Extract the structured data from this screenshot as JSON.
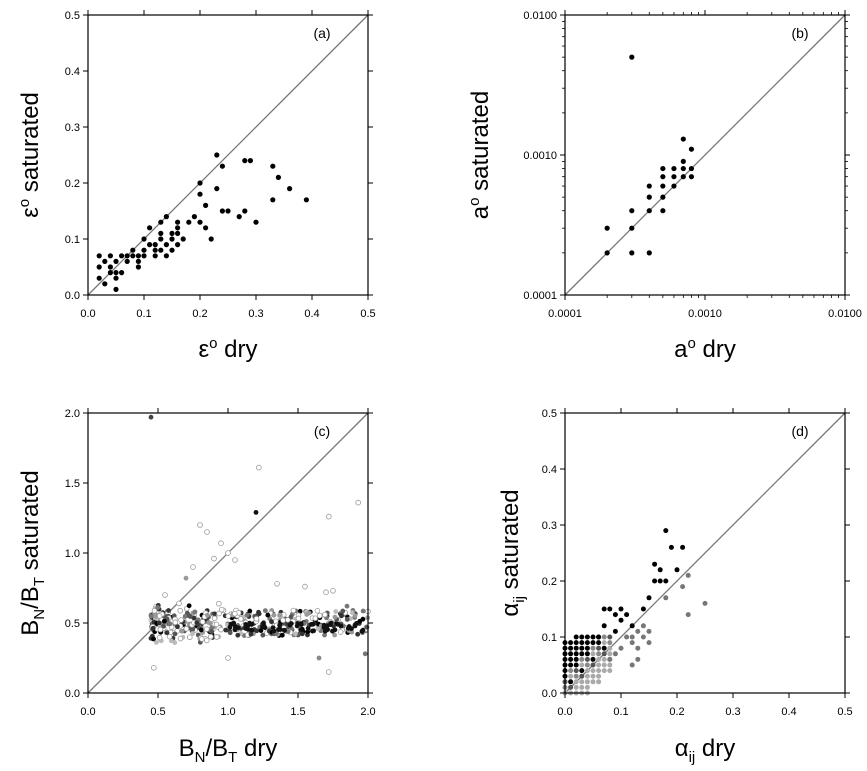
{
  "chart_data": [
    {
      "panel": "(a)",
      "type": "scatter",
      "xlabel": {
        "base": "ε",
        "sup": "o",
        "rest": " dry"
      },
      "ylabel": {
        "base": "ε",
        "sup": "o",
        "rest": " saturated"
      },
      "xlim": [
        0,
        0.5
      ],
      "ylim": [
        0,
        0.5
      ],
      "xticks": [
        "0.0",
        "0.1",
        "0.2",
        "0.3",
        "0.4",
        "0.5"
      ],
      "yticks": [
        "0.0",
        "0.1",
        "0.2",
        "0.3",
        "0.4",
        "0.5"
      ],
      "scale": "linear",
      "reference_line": "y = x",
      "points": [
        [
          0.02,
          0.07
        ],
        [
          0.02,
          0.05
        ],
        [
          0.02,
          0.03
        ],
        [
          0.03,
          0.06
        ],
        [
          0.03,
          0.02
        ],
        [
          0.04,
          0.07
        ],
        [
          0.04,
          0.05
        ],
        [
          0.04,
          0.04
        ],
        [
          0.05,
          0.06
        ],
        [
          0.05,
          0.04
        ],
        [
          0.05,
          0.03
        ],
        [
          0.05,
          0.01
        ],
        [
          0.06,
          0.07
        ],
        [
          0.06,
          0.04
        ],
        [
          0.07,
          0.07
        ],
        [
          0.07,
          0.06
        ],
        [
          0.08,
          0.07
        ],
        [
          0.08,
          0.08
        ],
        [
          0.09,
          0.06
        ],
        [
          0.09,
          0.07
        ],
        [
          0.09,
          0.05
        ],
        [
          0.1,
          0.08
        ],
        [
          0.1,
          0.1
        ],
        [
          0.1,
          0.07
        ],
        [
          0.11,
          0.09
        ],
        [
          0.11,
          0.12
        ],
        [
          0.12,
          0.09
        ],
        [
          0.12,
          0.08
        ],
        [
          0.12,
          0.07
        ],
        [
          0.13,
          0.1
        ],
        [
          0.13,
          0.13
        ],
        [
          0.13,
          0.11
        ],
        [
          0.13,
          0.08
        ],
        [
          0.14,
          0.14
        ],
        [
          0.14,
          0.09
        ],
        [
          0.14,
          0.07
        ],
        [
          0.15,
          0.11
        ],
        [
          0.15,
          0.1
        ],
        [
          0.15,
          0.08
        ],
        [
          0.16,
          0.13
        ],
        [
          0.16,
          0.12
        ],
        [
          0.16,
          0.11
        ],
        [
          0.16,
          0.09
        ],
        [
          0.17,
          0.1
        ],
        [
          0.18,
          0.13
        ],
        [
          0.19,
          0.14
        ],
        [
          0.2,
          0.18
        ],
        [
          0.2,
          0.2
        ],
        [
          0.2,
          0.13
        ],
        [
          0.21,
          0.12
        ],
        [
          0.21,
          0.16
        ],
        [
          0.22,
          0.1
        ],
        [
          0.23,
          0.19
        ],
        [
          0.23,
          0.25
        ],
        [
          0.24,
          0.23
        ],
        [
          0.24,
          0.15
        ],
        [
          0.25,
          0.15
        ],
        [
          0.27,
          0.14
        ],
        [
          0.28,
          0.24
        ],
        [
          0.28,
          0.15
        ],
        [
          0.29,
          0.24
        ],
        [
          0.3,
          0.13
        ],
        [
          0.33,
          0.23
        ],
        [
          0.33,
          0.17
        ],
        [
          0.34,
          0.21
        ],
        [
          0.36,
          0.19
        ],
        [
          0.39,
          0.17
        ]
      ]
    },
    {
      "panel": "(b)",
      "type": "scatter",
      "xlabel": {
        "base": "a",
        "sup": "o",
        "rest": " dry"
      },
      "ylabel": {
        "base": "a",
        "sup": "o",
        "rest": " saturated"
      },
      "xlim": [
        0.0001,
        0.01
      ],
      "ylim": [
        0.0001,
        0.01
      ],
      "xticks": [
        "0.0001",
        "0.0010",
        "0.0100"
      ],
      "yticks": [
        "0.0001",
        "0.0010",
        "0.0100"
      ],
      "scale": "log",
      "reference_line": "y = x",
      "points": [
        [
          0.0002,
          0.0003
        ],
        [
          0.0002,
          0.0002
        ],
        [
          0.0003,
          0.005
        ],
        [
          0.0003,
          0.0004
        ],
        [
          0.0003,
          0.0003
        ],
        [
          0.0003,
          0.0002
        ],
        [
          0.0004,
          0.0006
        ],
        [
          0.0004,
          0.0005
        ],
        [
          0.0004,
          0.0004
        ],
        [
          0.0004,
          0.0002
        ],
        [
          0.0005,
          0.0008
        ],
        [
          0.0005,
          0.0007
        ],
        [
          0.0005,
          0.0006
        ],
        [
          0.0005,
          0.0005
        ],
        [
          0.0005,
          0.0004
        ],
        [
          0.0006,
          0.0008
        ],
        [
          0.0006,
          0.0007
        ],
        [
          0.0006,
          0.0006
        ],
        [
          0.0007,
          0.0013
        ],
        [
          0.0007,
          0.0009
        ],
        [
          0.0007,
          0.0008
        ],
        [
          0.0007,
          0.0007
        ],
        [
          0.0008,
          0.0011
        ],
        [
          0.0008,
          0.0008
        ],
        [
          0.0008,
          0.0007
        ]
      ]
    },
    {
      "panel": "(c)",
      "type": "scatter",
      "xlabel": {
        "base": "B",
        "sub1": "N",
        "mid": "/B",
        "sub2": "T",
        "rest": " dry"
      },
      "ylabel": {
        "base": "B",
        "sub1": "N",
        "mid": "/B",
        "sub2": "T",
        "rest": " saturated"
      },
      "xlim": [
        0,
        2.0
      ],
      "ylim": [
        0,
        2.0
      ],
      "xticks": [
        "0.0",
        "0.5",
        "1.0",
        "1.5",
        "2.0"
      ],
      "yticks": [
        "0.0",
        "0.5",
        "1.0",
        "1.5",
        "2.0"
      ],
      "scale": "linear",
      "reference_line": "y = x",
      "points_shaded": true
    },
    {
      "panel": "(d)",
      "type": "scatter",
      "xlabel": {
        "base": "α",
        "sub1": "ij",
        "rest": " dry"
      },
      "ylabel": {
        "base": "α",
        "sub1": "ij",
        "rest": " saturated"
      },
      "xlim": [
        0,
        0.5
      ],
      "ylim": [
        0,
        0.5
      ],
      "xticks": [
        "0.0",
        "0.1",
        "0.2",
        "0.3",
        "0.4",
        "0.5"
      ],
      "yticks": [
        "0.0",
        "0.1",
        "0.2",
        "0.3",
        "0.4",
        "0.5"
      ],
      "scale": "linear",
      "reference_line": "y = x",
      "points_shaded": true
    }
  ]
}
